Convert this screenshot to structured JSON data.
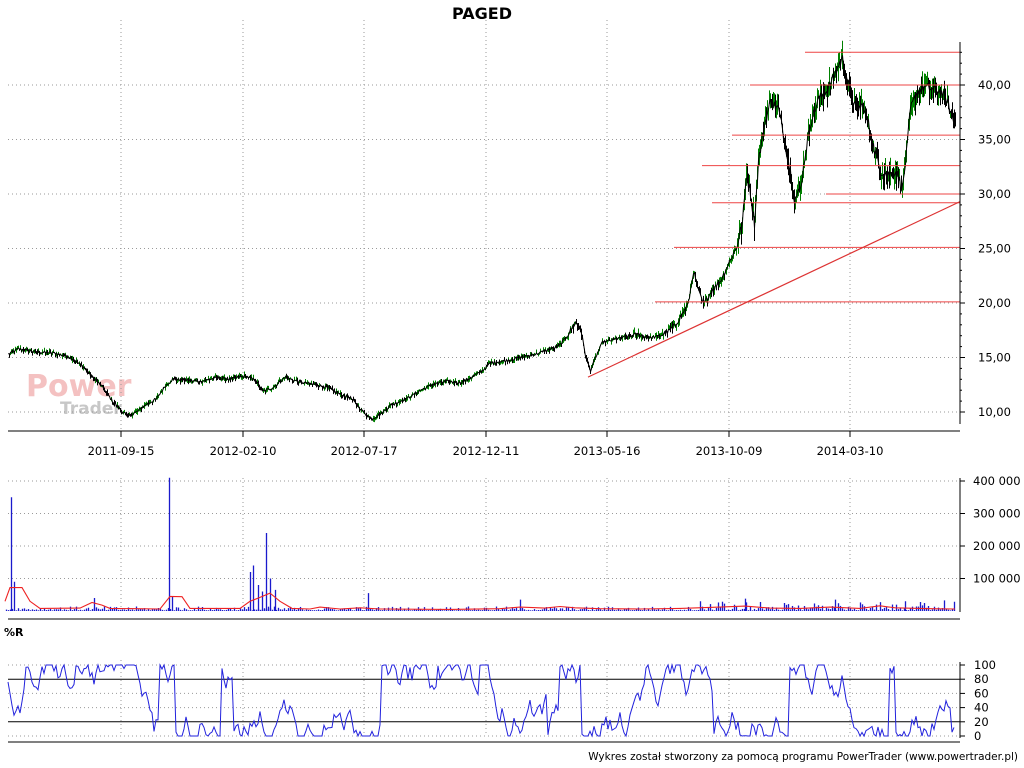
{
  "title": "PAGED",
  "footer": "Wykres został stworzony za pomocą programu PowerTrader (www.powertrader.pl)",
  "watermark": {
    "line1": "Power",
    "line2": "Trader"
  },
  "panel_labels": {
    "indicator": "%R"
  },
  "colors": {
    "price_line": "#000000",
    "price_up": "#008000",
    "horizontal_lines": "#ee4444",
    "trendline": "#dd3333",
    "volume_bars": "#1a1acc",
    "volume_ma": "#ee2222",
    "wr_line": "#2222dd",
    "grid": "#9a9a9a"
  },
  "chart_data": [
    {
      "type": "line",
      "name": "price",
      "x_ticks": [
        "2011-09-15",
        "2012-02-10",
        "2012-07-17",
        "2012-12-11",
        "2013-05-16",
        "2013-10-09",
        "2014-03-10"
      ],
      "y_ticks": [
        "10,00",
        "15,00",
        "20,00",
        "25,00",
        "30,00",
        "35,00",
        "40,00"
      ],
      "ylim": [
        9,
        45
      ],
      "series": [
        {
          "values": [
            [
              0,
              14.2
            ],
            [
              8,
              15.3
            ],
            [
              18,
              15.8
            ],
            [
              35,
              15.5
            ],
            [
              55,
              15.4
            ],
            [
              70,
              15.0
            ],
            [
              82,
              14.2
            ],
            [
              92,
              13.2
            ],
            [
              102,
              12.3
            ],
            [
              112,
              11.0
            ],
            [
              120,
              10.2
            ],
            [
              128,
              9.6
            ],
            [
              136,
              10.0
            ],
            [
              146,
              10.7
            ],
            [
              156,
              11.2
            ],
            [
              164,
              12.3
            ],
            [
              172,
              13.0
            ],
            [
              185,
              12.9
            ],
            [
              200,
              12.8
            ],
            [
              215,
              13.1
            ],
            [
              230,
              13.0
            ],
            [
              245,
              13.3
            ],
            [
              255,
              12.9
            ],
            [
              262,
              11.9
            ],
            [
              272,
              12.2
            ],
            [
              285,
              13.2
            ],
            [
              290,
              13.0
            ],
            [
              302,
              12.7
            ],
            [
              315,
              12.5
            ],
            [
              328,
              12.2
            ],
            [
              340,
              11.6
            ],
            [
              350,
              11.3
            ],
            [
              358,
              10.5
            ],
            [
              366,
              9.7
            ],
            [
              372,
              9.4
            ],
            [
              380,
              9.8
            ],
            [
              390,
              10.6
            ],
            [
              400,
              11.0
            ],
            [
              410,
              11.4
            ],
            [
              420,
              12.0
            ],
            [
              432,
              12.5
            ],
            [
              445,
              12.8
            ],
            [
              460,
              12.7
            ],
            [
              472,
              13.2
            ],
            [
              482,
              13.8
            ],
            [
              490,
              14.5
            ],
            [
              505,
              14.7
            ],
            [
              520,
              15.0
            ],
            [
              535,
              15.3
            ],
            [
              548,
              15.7
            ],
            [
              558,
              16.0
            ],
            [
              566,
              16.9
            ],
            [
              575,
              18.2
            ],
            [
              580,
              17.8
            ],
            [
              585,
              15.2
            ],
            [
              590,
              13.8
            ],
            [
              596,
              15.2
            ],
            [
              602,
              16.4
            ],
            [
              612,
              16.6
            ],
            [
              625,
              16.9
            ],
            [
              638,
              17.1
            ],
            [
              650,
              16.8
            ],
            [
              660,
              17.0
            ],
            [
              668,
              17.4
            ],
            [
              675,
              18.0
            ],
            [
              682,
              19.0
            ],
            [
              688,
              20.0
            ],
            [
              693,
              22.9
            ],
            [
              698,
              21.1
            ],
            [
              703,
              19.9
            ],
            [
              712,
              21.2
            ],
            [
              720,
              22.0
            ],
            [
              728,
              23.6
            ],
            [
              736,
              25.1
            ],
            [
              742,
              27.4
            ],
            [
              746,
              31.8
            ],
            [
              750,
              30.1
            ],
            [
              754,
              27.3
            ],
            [
              758,
              33.0
            ],
            [
              764,
              36.3
            ],
            [
              770,
              38.5
            ],
            [
              778,
              37.8
            ],
            [
              784,
              35.0
            ],
            [
              790,
              32.0
            ],
            [
              794,
              29.5
            ],
            [
              800,
              30.4
            ],
            [
              804,
              33.2
            ],
            [
              810,
              36.5
            ],
            [
              818,
              38.7
            ],
            [
              826,
              39.4
            ],
            [
              832,
              40.5
            ],
            [
              838,
              41.8
            ],
            [
              842,
              42.4
            ],
            [
              846,
              40.8
            ],
            [
              850,
              39.2
            ],
            [
              856,
              37.7
            ],
            [
              862,
              38.1
            ],
            [
              868,
              36.4
            ],
            [
              874,
              34.0
            ],
            [
              880,
              32.1
            ],
            [
              888,
              31.8
            ],
            [
              896,
              32.0
            ],
            [
              902,
              30.5
            ],
            [
              906,
              33.7
            ],
            [
              910,
              37.8
            ],
            [
              916,
              39.2
            ],
            [
              924,
              39.8
            ],
            [
              932,
              39.6
            ],
            [
              940,
              39.4
            ],
            [
              946,
              38.6
            ],
            [
              952,
              37.0
            ],
            [
              955,
              36.2
            ]
          ]
        }
      ],
      "horizontal_levels": [
        {
          "y": 43.0,
          "x_from": 805
        },
        {
          "y": 40.0,
          "x_from": 750
        },
        {
          "y": 35.4,
          "x_from": 732
        },
        {
          "y": 32.6,
          "x_from": 702
        },
        {
          "y": 30.0,
          "x_from": 826
        },
        {
          "y": 29.2,
          "x_from": 712
        },
        {
          "y": 25.1,
          "x_from": 674
        },
        {
          "y": 20.1,
          "x_from": 655
        }
      ],
      "trendline": {
        "from": [
          588,
          13.2
        ],
        "to": [
          960,
          29.3
        ]
      }
    },
    {
      "type": "bar",
      "name": "volume",
      "y_ticks": [
        "100 000",
        "200 000",
        "300 000",
        "400 000"
      ],
      "ylim": [
        0,
        420000
      ],
      "spikes": [
        {
          "x": 11,
          "v": 350000
        },
        {
          "x": 14,
          "v": 90000
        },
        {
          "x": 169,
          "v": 410000
        },
        {
          "x": 172,
          "v": 45000
        },
        {
          "x": 250,
          "v": 120000
        },
        {
          "x": 253,
          "v": 140000
        },
        {
          "x": 258,
          "v": 80000
        },
        {
          "x": 262,
          "v": 60000
        },
        {
          "x": 266,
          "v": 240000
        },
        {
          "x": 270,
          "v": 100000
        },
        {
          "x": 275,
          "v": 65000
        },
        {
          "x": 94,
          "v": 40000
        },
        {
          "x": 368,
          "v": 55000
        },
        {
          "x": 520,
          "v": 35000
        },
        {
          "x": 700,
          "v": 30000
        },
        {
          "x": 745,
          "v": 38000
        },
        {
          "x": 835,
          "v": 35000
        },
        {
          "x": 905,
          "v": 30000
        }
      ],
      "ma_line": [
        [
          5,
          30000
        ],
        [
          10,
          72000
        ],
        [
          22,
          72000
        ],
        [
          30,
          30000
        ],
        [
          40,
          8000
        ],
        [
          80,
          9000
        ],
        [
          92,
          26000
        ],
        [
          102,
          18000
        ],
        [
          110,
          8000
        ],
        [
          160,
          6000
        ],
        [
          170,
          45000
        ],
        [
          182,
          44000
        ],
        [
          190,
          8000
        ],
        [
          240,
          8000
        ],
        [
          250,
          30000
        ],
        [
          260,
          42000
        ],
        [
          270,
          55000
        ],
        [
          280,
          30000
        ],
        [
          292,
          8000
        ],
        [
          310,
          6000
        ],
        [
          320,
          12000
        ],
        [
          340,
          6000
        ],
        [
          360,
          10000
        ],
        [
          380,
          6000
        ],
        [
          450,
          5000
        ],
        [
          500,
          7000
        ],
        [
          520,
          12000
        ],
        [
          545,
          9000
        ],
        [
          560,
          14000
        ],
        [
          575,
          10000
        ],
        [
          600,
          7000
        ],
        [
          640,
          6000
        ],
        [
          680,
          8000
        ],
        [
          720,
          12000
        ],
        [
          745,
          15000
        ],
        [
          770,
          9000
        ],
        [
          800,
          8000
        ],
        [
          830,
          12000
        ],
        [
          860,
          8000
        ],
        [
          880,
          16000
        ],
        [
          895,
          10000
        ],
        [
          930,
          7000
        ],
        [
          955,
          6000
        ]
      ]
    },
    {
      "type": "line",
      "name": "%R",
      "y_ticks": [
        "0",
        "20",
        "40",
        "60",
        "80",
        "100"
      ],
      "ylim": [
        0,
        100
      ],
      "reference_lines": [
        20,
        80
      ]
    }
  ]
}
